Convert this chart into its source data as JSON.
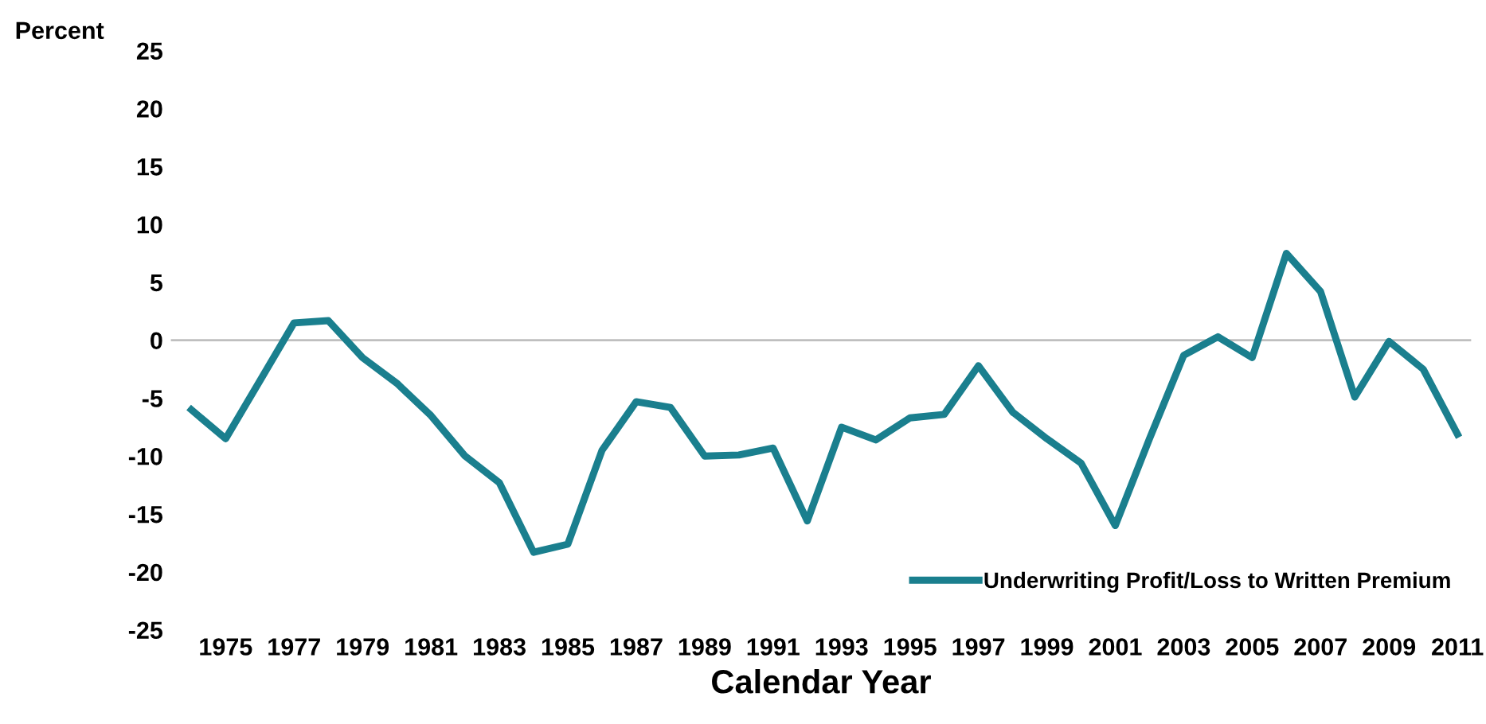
{
  "chart_data": {
    "type": "line",
    "ylabel": "Percent",
    "xlabel": "Calendar Year",
    "categories": [
      null,
      "1975",
      null,
      "1977",
      null,
      "1979",
      null,
      "1981",
      null,
      "1983",
      null,
      "1985",
      null,
      "1987",
      null,
      "1989",
      null,
      "1991",
      null,
      "1993",
      null,
      "1995",
      null,
      "1997",
      null,
      "1999",
      null,
      "2001",
      null,
      "2003",
      null,
      "2005",
      null,
      "2007",
      null,
      "2009",
      null,
      "2011"
    ],
    "series": [
      {
        "name": "Underwriting Profit/Loss to Written Premium",
        "color": "#1a7f8e",
        "values": [
          -6,
          -8.5,
          -3.5,
          1.5,
          1.7,
          -1.5,
          -3.7,
          -6.5,
          -10,
          -12.3,
          -18.3,
          -17.6,
          -9.5,
          -5.3,
          -5.8,
          -10,
          -9.9,
          -9.3,
          -15.6,
          -7.5,
          -8.6,
          -6.7,
          -6.4,
          -2.2,
          -6.2,
          -8.5,
          -10.6,
          -16,
          -8.5,
          -1.3,
          0.3,
          -1.5,
          7.5,
          4.2,
          -4.9,
          -0.1,
          -2.5,
          -8.1
        ]
      }
    ],
    "ylim": [
      -25,
      25
    ],
    "yticks": [
      -25,
      -20,
      -15,
      -10,
      -5,
      0,
      5,
      10,
      15,
      20,
      25
    ],
    "ref_lines": [
      {
        "axis": "y",
        "value": 0,
        "color": "#bfbfbf"
      }
    ],
    "grid": false,
    "legend": "bottom right",
    "marker": "none",
    "line_style": "solid"
  }
}
